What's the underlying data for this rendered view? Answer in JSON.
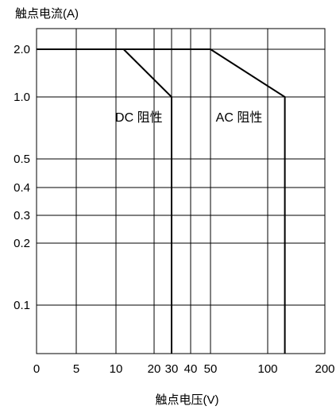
{
  "chart_data": {
    "type": "line",
    "ylabel": "触点电流(A)",
    "xlabel": "触点电压(V)",
    "x_scale": "piecewise",
    "y_scale": "piecewise",
    "x_ticks": [
      {
        "value": 0,
        "label": "0"
      },
      {
        "value": 5,
        "label": "5"
      },
      {
        "value": 10,
        "label": "10"
      },
      {
        "value": 20,
        "label": "20"
      },
      {
        "value": 30,
        "label": "30"
      },
      {
        "value": 40,
        "label": "40"
      },
      {
        "value": 50,
        "label": "50"
      },
      {
        "value": 100,
        "label": "100"
      },
      {
        "value": 200,
        "label": "200"
      }
    ],
    "y_ticks": [
      {
        "value": 2.0,
        "label": "2.0"
      },
      {
        "value": 1.0,
        "label": "1.0"
      },
      {
        "value": 0.5,
        "label": "0.5"
      },
      {
        "value": 0.4,
        "label": "0.4"
      },
      {
        "value": 0.3,
        "label": "0.3"
      },
      {
        "value": 0.2,
        "label": "0.2"
      },
      {
        "value": 0.1,
        "label": "0.1"
      }
    ],
    "y_min": 0.06,
    "y_max": 2.6,
    "grid": true,
    "series": [
      {
        "points": [
          {
            "x": 0,
            "y": 2.0
          },
          {
            "x": 12,
            "y": 2.0
          },
          {
            "x": 30,
            "y": 1.0
          },
          {
            "x": 30,
            "y": 0.06
          }
        ]
      },
      {
        "points": [
          {
            "x": 0,
            "y": 2.0
          },
          {
            "x": 50,
            "y": 2.0
          },
          {
            "x": 130,
            "y": 1.0
          },
          {
            "x": 130,
            "y": 0.06
          }
        ]
      }
    ],
    "annotations": [
      {
        "text": "DC 阻性",
        "x": 16,
        "y": 0.8
      },
      {
        "text": "AC 阻性",
        "x": 75,
        "y": 0.8
      }
    ]
  }
}
